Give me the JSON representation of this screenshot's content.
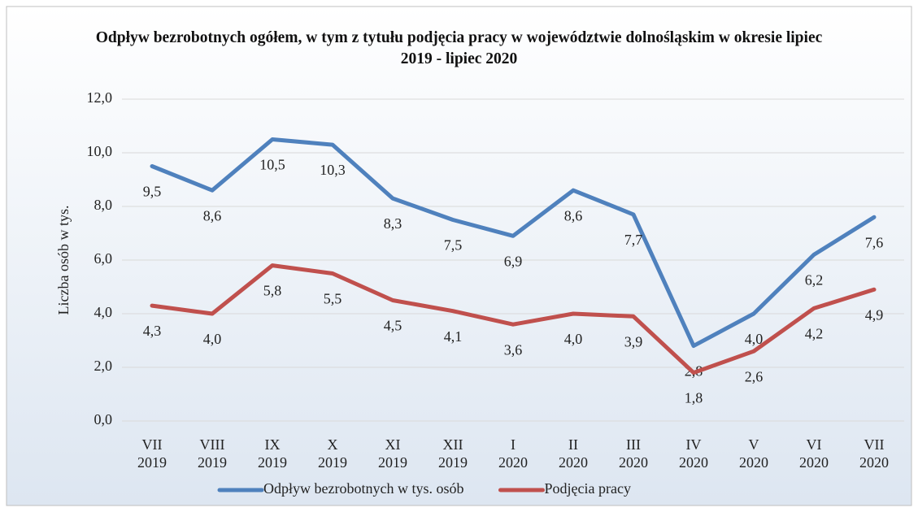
{
  "chart_data": {
    "type": "line",
    "title": "Odpływ bezrobotnych ogółem, w tym z tytułu podjęcia pracy  w województwie dolnośląskim w okresie lipiec 2019 - lipiec 2020",
    "ylabel": "Liczba osób w tys.",
    "categories": [
      "VII\n2019",
      "VIII\n2019",
      "IX\n2019",
      "X\n2019",
      "XI\n2019",
      "XII\n2019",
      "I\n2020",
      "II\n2020",
      "III\n2020",
      "IV\n2020",
      "V\n2020",
      "VI\n2020",
      "VII\n2020"
    ],
    "series": [
      {
        "name": "Odpływ bezrobotnych w tys. osób",
        "color": "#4f81bd",
        "values": [
          9.5,
          8.6,
          10.5,
          10.3,
          8.3,
          7.5,
          6.9,
          8.6,
          7.7,
          2.8,
          4.0,
          6.2,
          7.6
        ],
        "value_labels": [
          "9,5",
          "8,6",
          "10,5",
          "10,3",
          "8,3",
          "7,5",
          "6,9",
          "8,6",
          "7,7",
          "2,8",
          "4,0",
          "6,2",
          "7,6"
        ]
      },
      {
        "name": "Podjęcia pracy",
        "color": "#c0504d",
        "values": [
          4.3,
          4.0,
          5.8,
          5.5,
          4.5,
          4.1,
          3.6,
          4.0,
          3.9,
          1.8,
          2.6,
          4.2,
          4.9
        ],
        "value_labels": [
          "4,3",
          "4,0",
          "5,8",
          "5,5",
          "4,5",
          "4,1",
          "3,6",
          "4,0",
          "3,9",
          "1,8",
          "2,6",
          "4,2",
          "4,9"
        ]
      }
    ],
    "ylim": [
      0,
      12
    ],
    "yticks": [
      {
        "value": 0,
        "label": "0,0"
      },
      {
        "value": 2,
        "label": "2,0"
      },
      {
        "value": 4,
        "label": "4,0"
      },
      {
        "value": 6,
        "label": "6,0"
      },
      {
        "value": 8,
        "label": "8,0"
      },
      {
        "value": 10,
        "label": "10,0"
      },
      {
        "value": 12,
        "label": "12,0"
      }
    ],
    "grid": true,
    "legend": "bottom"
  }
}
